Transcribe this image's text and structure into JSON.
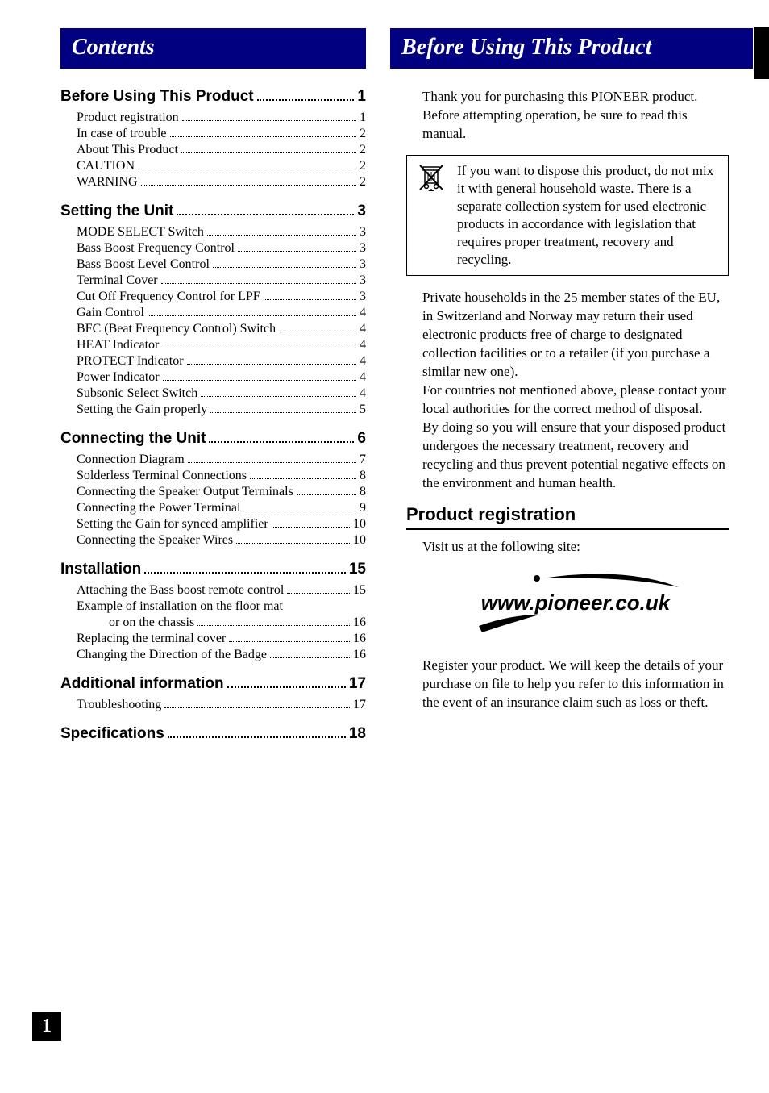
{
  "leftHeader": "Contents",
  "rightHeader": "Before Using This Product",
  "toc": {
    "sections": [
      {
        "title": "Before Using This Product",
        "page": "1",
        "items": [
          {
            "label": "Product registration",
            "page": "1"
          },
          {
            "label": "In case of trouble",
            "page": "2"
          },
          {
            "label": "About This Product",
            "page": "2"
          },
          {
            "label": "CAUTION",
            "page": "2"
          },
          {
            "label": "WARNING",
            "page": "2"
          }
        ]
      },
      {
        "title": "Setting the Unit",
        "page": "3",
        "items": [
          {
            "label": "MODE SELECT Switch",
            "page": "3"
          },
          {
            "label": "Bass Boost Frequency Control",
            "page": "3"
          },
          {
            "label": "Bass Boost Level Control",
            "page": "3"
          },
          {
            "label": "Terminal Cover",
            "page": "3"
          },
          {
            "label": "Cut Off Frequency Control for LPF",
            "page": "3"
          },
          {
            "label": "Gain Control",
            "page": "4"
          },
          {
            "label": "BFC (Beat Frequency Control) Switch",
            "page": "4"
          },
          {
            "label": "HEAT Indicator",
            "page": "4"
          },
          {
            "label": "PROTECT Indicator",
            "page": "4"
          },
          {
            "label": "Power Indicator",
            "page": "4"
          },
          {
            "label": "Subsonic Select Switch",
            "page": "4"
          },
          {
            "label": "Setting the Gain properly",
            "page": "5"
          }
        ]
      },
      {
        "title": "Connecting the Unit",
        "page": "6",
        "items": [
          {
            "label": "Connection Diagram",
            "page": "7"
          },
          {
            "label": "Solderless Terminal Connections",
            "page": "8"
          },
          {
            "label": "Connecting the Speaker Output Terminals",
            "page": "8"
          },
          {
            "label": "Connecting the Power Terminal",
            "page": "9"
          },
          {
            "label": "Setting the Gain for synced amplifier",
            "page": "10"
          },
          {
            "label": "Connecting the Speaker Wires",
            "page": "10"
          }
        ]
      },
      {
        "title": "Installation",
        "page": "15",
        "items": [
          {
            "label": "Attaching the Bass boost remote control",
            "page": "15"
          },
          {
            "label": "Example of installation on the floor mat",
            "multi": true,
            "cont": "or on the chassis",
            "page": "16"
          },
          {
            "label": "Replacing the terminal cover",
            "page": "16"
          },
          {
            "label": "Changing the Direction of the Badge",
            "page": "16"
          }
        ]
      },
      {
        "title": "Additional information",
        "page": "17",
        "items": [
          {
            "label": "Troubleshooting",
            "page": "17"
          }
        ]
      },
      {
        "title": "Specifications",
        "page": "18",
        "items": []
      }
    ]
  },
  "intro": "Thank you for purchasing this PIONEER product. Before attempting operation, be sure to read this manual.",
  "notice": "If you want to dispose this product, do not mix it with general household waste. There is a separate collection system for used electronic products in accordance with legislation that requires proper treatment, recovery and recycling.",
  "euText": "Private households in the 25 member states of the EU, in Switzerland and Norway may return their used electronic products free of charge to designated collection facilities or to a retailer (if you purchase a similar new one).\nFor countries not mentioned above, please contact your local authorities for the correct method of disposal.\nBy doing so you will ensure that your disposed product undergoes the necessary treatment, recovery and recycling and thus prevent potential negative effects on the environment and human health.",
  "registration": {
    "header": "Product registration",
    "visit": "Visit us at the following site:",
    "url": "www.pioneer.co.uk",
    "text": "Register your product. We will keep the details of your purchase on file to help you refer to this information in the event of an insurance claim such as loss or theft."
  },
  "pageNumber": "1",
  "colors": {
    "headerBg": "#000080",
    "pageBg": "#ffffff",
    "text": "#000000"
  }
}
